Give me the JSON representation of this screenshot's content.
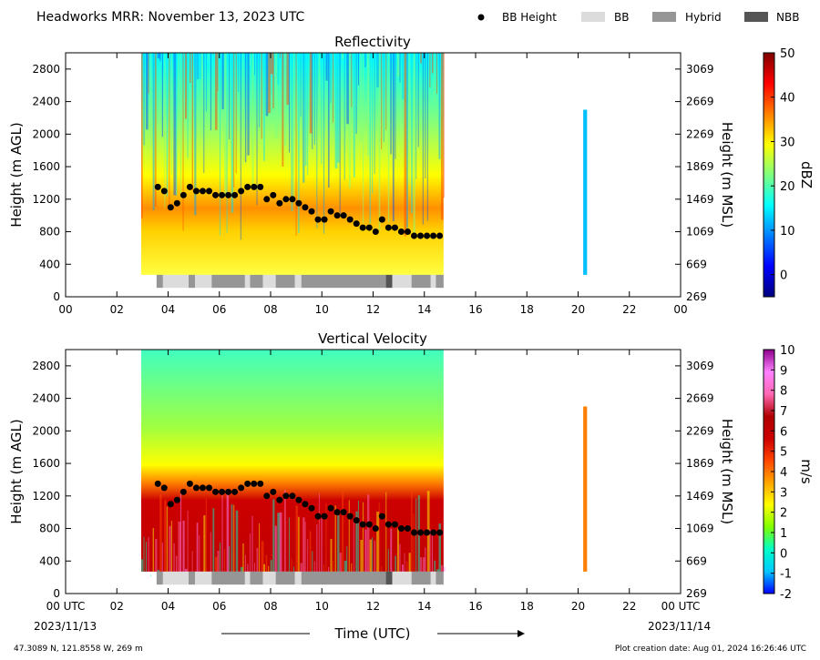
{
  "header": {
    "title": "Headworks MRR:  November 13, 2023 UTC",
    "legend": [
      {
        "label": "BB Height",
        "symbol": "dot",
        "color": "#000000"
      },
      {
        "label": "BB",
        "symbol": "rect",
        "color": "#dcdcdc"
      },
      {
        "label": "Hybrid",
        "symbol": "rect",
        "color": "#969696"
      },
      {
        "label": "NBB",
        "symbol": "rect",
        "color": "#555555"
      }
    ]
  },
  "footer": {
    "location": "47.3089 N, 121.8558 W, 269 m",
    "creation": "Plot creation date: Aug 01, 2024 16:26:46 UTC",
    "xlabel": "Time (UTC)",
    "start_date": "2023/11/13",
    "end_date": "2023/11/14"
  },
  "colors": {
    "bb": "#dcdcdc",
    "hybrid": "#969696",
    "nbb": "#555555",
    "dots": "#000000"
  },
  "chart_data": [
    {
      "type": "heatmap",
      "title": "Reflectivity",
      "ylabel": "Height (m AGL)",
      "ylabel_right": "Height (m MSL)",
      "colorbar_label": "dBZ",
      "x_unit": "hour UTC",
      "xlim": [
        0,
        24
      ],
      "ylim": [
        0,
        3000
      ],
      "x_ticks": [
        "00",
        "02",
        "04",
        "06",
        "08",
        "10",
        "12",
        "14",
        "16",
        "18",
        "20",
        "22",
        "00"
      ],
      "y_ticks_left": [
        "0",
        "400",
        "800",
        "1200",
        "1600",
        "2000",
        "2400",
        "2800"
      ],
      "y_ticks_right": [
        "269",
        "669",
        "1069",
        "1469",
        "1869",
        "2269",
        "2669",
        "3069"
      ],
      "colorbar": {
        "min": -5,
        "max": 50,
        "ticks": [
          "0",
          "10",
          "20",
          "30",
          "40",
          "50"
        ],
        "tick_values": [
          0,
          10,
          20,
          30,
          40,
          50
        ],
        "stops": [
          "#00007f",
          "#0000ff",
          "#007fff",
          "#00ffff",
          "#7fff7f",
          "#ffff00",
          "#ff7f00",
          "#ff0000",
          "#7f0000"
        ]
      },
      "data_extent": {
        "time": [
          2.95,
          14.75
        ],
        "height": [
          270,
          3000
        ],
        "late_echo_time": [
          20.2,
          20.35
        ],
        "late_echo_height": [
          270,
          2300
        ]
      },
      "grid": false
    },
    {
      "type": "heatmap",
      "title": "Vertical Velocity",
      "ylabel": "Height (m AGL)",
      "ylabel_right": "Height (m MSL)",
      "colorbar_label": "m/s",
      "x_unit": "hour UTC",
      "xlim": [
        0,
        24
      ],
      "ylim": [
        0,
        3000
      ],
      "x_ticks": [
        "00 UTC",
        "02",
        "04",
        "06",
        "08",
        "10",
        "12",
        "14",
        "16",
        "18",
        "20",
        "22",
        "00 UTC"
      ],
      "y_ticks_left": [
        "0",
        "400",
        "800",
        "1200",
        "1600",
        "2000",
        "2400",
        "2800"
      ],
      "y_ticks_right": [
        "269",
        "669",
        "1069",
        "1469",
        "1869",
        "2269",
        "2669",
        "3069"
      ],
      "colorbar": {
        "min": -2,
        "max": 10,
        "ticks": [
          "-2",
          "-1",
          "0",
          "1",
          "2",
          "3",
          "4",
          "5",
          "6",
          "7",
          "8",
          "9",
          "10"
        ],
        "tick_values": [
          -2,
          -1,
          0,
          1,
          2,
          3,
          4,
          5,
          6,
          7,
          8,
          9,
          10
        ],
        "stops": [
          "#0000ff",
          "#00c8ff",
          "#00ffc8",
          "#7fff00",
          "#ffff00",
          "#ffa500",
          "#ff4500",
          "#cc0000",
          "#b00000",
          "#ff69b4",
          "#ff80ff",
          "#8b008b"
        ]
      },
      "data_extent": {
        "time": [
          2.95,
          14.75
        ],
        "height": [
          270,
          3000
        ],
        "late_echo_time": [
          20.2,
          20.35
        ],
        "late_echo_height": [
          270,
          2300
        ]
      },
      "grid": false
    }
  ],
  "bb_height": {
    "time": [
      3.6,
      3.85,
      4.1,
      4.35,
      4.6,
      4.85,
      5.1,
      5.35,
      5.6,
      5.85,
      6.1,
      6.35,
      6.6,
      6.85,
      7.1,
      7.35,
      7.6,
      7.85,
      8.1,
      8.35,
      8.6,
      8.85,
      9.1,
      9.35,
      9.6,
      9.85,
      10.1,
      10.35,
      10.6,
      10.85,
      11.1,
      11.35,
      11.6,
      11.85,
      12.1,
      12.35,
      12.6,
      12.85,
      13.1,
      13.35,
      13.6,
      13.85,
      14.1,
      14.35,
      14.6
    ],
    "height": [
      1350,
      1300,
      1100,
      1150,
      1250,
      1350,
      1300,
      1300,
      1300,
      1250,
      1250,
      1250,
      1250,
      1300,
      1350,
      1350,
      1350,
      1200,
      1250,
      1150,
      1200,
      1200,
      1150,
      1100,
      1050,
      950,
      950,
      1050,
      1000,
      1000,
      950,
      900,
      850,
      850,
      800,
      950,
      850,
      850,
      800,
      800,
      750,
      750,
      750,
      750,
      750
    ]
  },
  "bb_type_segments": [
    {
      "start": 3.55,
      "end": 3.8,
      "type": "hybrid"
    },
    {
      "start": 3.8,
      "end": 4.8,
      "type": "bb"
    },
    {
      "start": 4.8,
      "end": 5.05,
      "type": "hybrid"
    },
    {
      "start": 5.05,
      "end": 5.7,
      "type": "bb"
    },
    {
      "start": 5.7,
      "end": 7.0,
      "type": "hybrid"
    },
    {
      "start": 7.0,
      "end": 7.2,
      "type": "bb"
    },
    {
      "start": 7.2,
      "end": 7.7,
      "type": "hybrid"
    },
    {
      "start": 7.7,
      "end": 8.2,
      "type": "bb"
    },
    {
      "start": 8.2,
      "end": 8.95,
      "type": "hybrid"
    },
    {
      "start": 8.95,
      "end": 9.2,
      "type": "bb"
    },
    {
      "start": 9.2,
      "end": 12.5,
      "type": "hybrid"
    },
    {
      "start": 12.5,
      "end": 12.75,
      "type": "nbb"
    },
    {
      "start": 12.75,
      "end": 13.5,
      "type": "bb"
    },
    {
      "start": 13.5,
      "end": 14.25,
      "type": "hybrid"
    },
    {
      "start": 14.25,
      "end": 14.45,
      "type": "bb"
    },
    {
      "start": 14.45,
      "end": 14.75,
      "type": "hybrid"
    }
  ]
}
